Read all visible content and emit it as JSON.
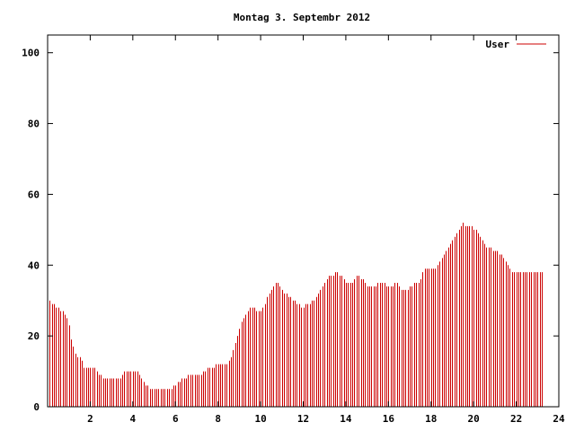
{
  "chart_data": {
    "type": "bar",
    "title": "Montag 3. Septembr 2012",
    "xlabel": "",
    "ylabel": "",
    "xlim": [
      0,
      24
    ],
    "ylim": [
      0,
      105
    ],
    "grid": false,
    "legend_position": "top-right",
    "x_ticks": [
      "2",
      "4",
      "6",
      "8",
      "10",
      "12",
      "14",
      "16",
      "18",
      "20",
      "22",
      "24"
    ],
    "y_ticks": [
      "0",
      "20",
      "40",
      "60",
      "80",
      "100"
    ],
    "series": [
      {
        "name": "User",
        "color": "#cc0000",
        "step_hours": 0.1,
        "values": [
          30,
          29,
          29,
          28,
          28,
          27,
          27,
          26,
          25,
          23,
          19,
          17,
          15,
          14,
          14,
          13,
          11,
          11,
          11,
          11,
          11,
          11,
          10,
          9,
          9,
          8,
          8,
          8,
          8,
          8,
          8,
          8,
          8,
          8,
          9,
          10,
          10,
          10,
          10,
          10,
          10,
          10,
          9,
          8,
          7,
          6,
          6,
          5,
          5,
          5,
          5,
          5,
          5,
          5,
          5,
          5,
          5,
          5,
          6,
          6,
          7,
          7,
          8,
          8,
          8,
          9,
          9,
          9,
          9,
          9,
          9,
          9,
          10,
          10,
          11,
          11,
          11,
          11,
          12,
          12,
          12,
          12,
          12,
          12,
          13,
          14,
          16,
          18,
          20,
          22,
          24,
          25,
          26,
          27,
          28,
          28,
          28,
          27,
          27,
          27,
          28,
          29,
          31,
          32,
          33,
          34,
          35,
          35,
          34,
          33,
          32,
          32,
          31,
          31,
          30,
          30,
          29,
          29,
          28,
          28,
          29,
          29,
          29,
          30,
          30,
          31,
          32,
          33,
          34,
          35,
          36,
          37,
          37,
          37,
          38,
          38,
          37,
          37,
          36,
          35,
          35,
          35,
          35,
          36,
          37,
          37,
          36,
          36,
          35,
          34,
          34,
          34,
          34,
          34,
          35,
          35,
          35,
          35,
          34,
          34,
          34,
          34,
          35,
          35,
          34,
          33,
          33,
          33,
          33,
          34,
          34,
          35,
          35,
          35,
          36,
          38,
          39,
          39,
          39,
          39,
          39,
          39,
          40,
          41,
          42,
          43,
          44,
          45,
          46,
          47,
          48,
          49,
          50,
          51,
          52,
          51,
          51,
          51,
          51,
          50,
          50,
          49,
          48,
          47,
          46,
          45,
          45,
          45,
          44,
          44,
          44,
          43,
          43,
          42,
          41,
          40,
          39,
          38,
          38,
          38,
          38,
          38,
          38,
          38,
          38,
          38,
          38,
          38,
          38,
          38,
          38,
          38
        ]
      }
    ]
  }
}
